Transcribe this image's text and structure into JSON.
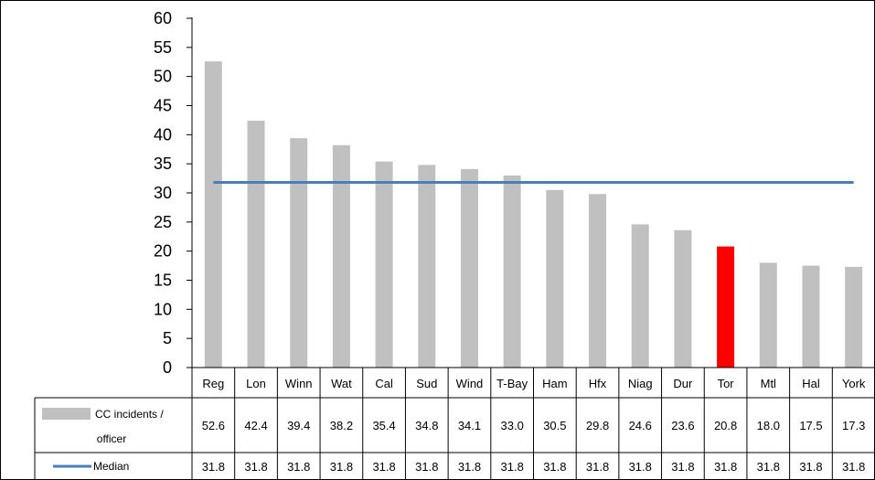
{
  "chart_data": {
    "type": "bar",
    "categories": [
      "Reg",
      "Lon",
      "Winn",
      "Wat",
      "Cal",
      "Sud",
      "Wind",
      "T-Bay",
      "Ham",
      "Hfx",
      "Niag",
      "Dur",
      "Tor",
      "Mtl",
      "Hal",
      "York"
    ],
    "series": [
      {
        "name": "CC incidents / officer",
        "type": "bar",
        "values": [
          52.6,
          42.4,
          39.4,
          38.2,
          35.4,
          34.8,
          34.1,
          33.0,
          30.5,
          29.8,
          24.6,
          23.6,
          20.8,
          18.0,
          17.5,
          17.3
        ],
        "display": [
          "52.6",
          "42.4",
          "39.4",
          "38.2",
          "35.4",
          "34.8",
          "34.1",
          "33.0",
          "30.5",
          "29.8",
          "24.6",
          "23.6",
          "20.8",
          "18.0",
          "17.5",
          "17.3"
        ],
        "legend_lines": [
          "CC incidents /",
          "officer"
        ],
        "color": "#c0c0c0",
        "highlight_category": "Tor",
        "highlight_color": "#ff0000"
      },
      {
        "name": "Median",
        "type": "line",
        "values": [
          31.8,
          31.8,
          31.8,
          31.8,
          31.8,
          31.8,
          31.8,
          31.8,
          31.8,
          31.8,
          31.8,
          31.8,
          31.8,
          31.8,
          31.8,
          31.8
        ],
        "display": [
          "31.8",
          "31.8",
          "31.8",
          "31.8",
          "31.8",
          "31.8",
          "31.8",
          "31.8",
          "31.8",
          "31.8",
          "31.8",
          "31.8",
          "31.8",
          "31.8",
          "31.8",
          "31.8"
        ],
        "color": "#4a7ebb"
      }
    ],
    "yticks": [
      "0",
      "5",
      "10",
      "15",
      "20",
      "25",
      "30",
      "35",
      "40",
      "45",
      "50",
      "55",
      "60"
    ],
    "ylim": [
      0,
      60
    ],
    "grid": false,
    "legend": "data-table",
    "title": "",
    "xlabel": "",
    "ylabel": ""
  }
}
